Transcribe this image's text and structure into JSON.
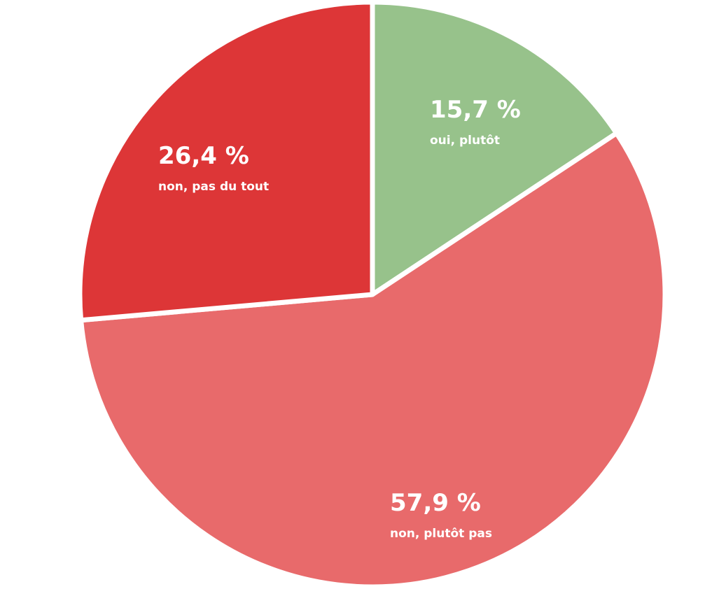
{
  "chart_data": {
    "type": "pie",
    "title": "",
    "start": "top",
    "direction": "clockwise",
    "slices": [
      {
        "label": "oui, plutôt",
        "value": 15.7,
        "display": "15,7 %",
        "color": "#97c28b"
      },
      {
        "label": "non, plutôt pas",
        "value": 57.9,
        "display": "57,9 %",
        "color": "#e86a6b"
      },
      {
        "label": "non, pas du tout",
        "value": 26.4,
        "display": "26,4 %",
        "color": "#dd3637"
      }
    ]
  }
}
